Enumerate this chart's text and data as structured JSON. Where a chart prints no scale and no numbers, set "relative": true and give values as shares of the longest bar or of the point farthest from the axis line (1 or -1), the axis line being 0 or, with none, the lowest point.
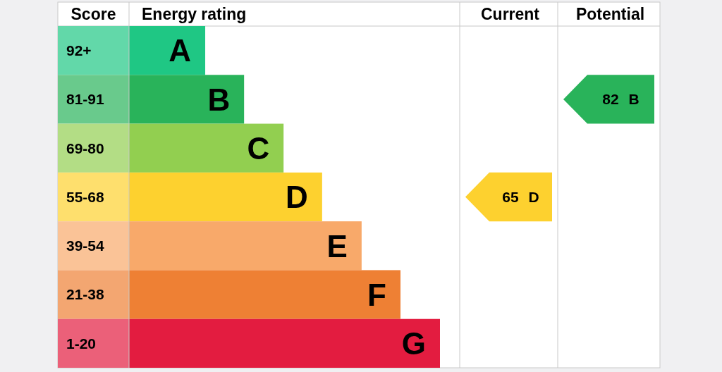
{
  "chart_data": {
    "type": "bar",
    "orientation": "horizontal",
    "relative": true,
    "ylabel": "Score",
    "xlabel": "Energy rating",
    "categories": [
      "92+",
      "81-91",
      "69-80",
      "55-68",
      "39-54",
      "21-38",
      "1-20"
    ],
    "values": [
      0.245,
      0.37,
      0.497,
      0.621,
      0.748,
      0.873,
      1
    ],
    "colors": [
      "#1fc784",
      "#29b35a",
      "#92cf50",
      "#fdd12f",
      "#f8a96a",
      "#ee8034",
      "#e31c40"
    ],
    "annotations": [
      "Current",
      "Potential",
      "65 D",
      "82 B",
      {
        "text": "A",
        "x": 0.245,
        "y": "92+"
      },
      {
        "text": "B",
        "x": 0.37,
        "y": "81-91"
      },
      {
        "text": "C",
        "x": 0.497,
        "y": "69-80"
      },
      {
        "text": "D",
        "x": 0.621,
        "y": "55-68"
      },
      {
        "text": "E",
        "x": 0.748,
        "y": "39-54"
      },
      {
        "text": "F",
        "x": 0.873,
        "y": "21-38"
      },
      {
        "text": "G",
        "x": 1,
        "y": "1-20"
      }
    ]
  }
}
